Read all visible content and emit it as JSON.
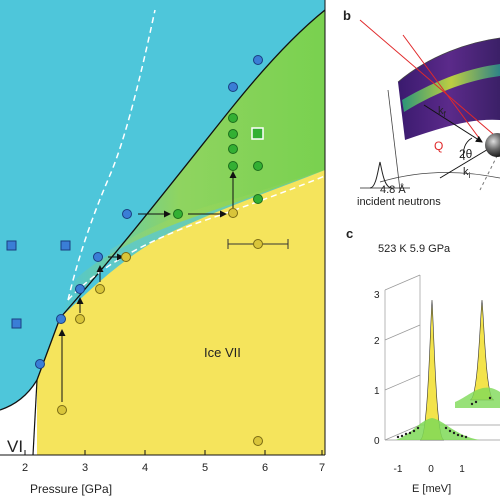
{
  "panel_a": {
    "xlabel": "Pressure [GPa]",
    "x_ticks": [
      "2",
      "3",
      "4",
      "5",
      "6",
      "7"
    ],
    "region_ice_vii": "Ice VII",
    "region_vi": "VI",
    "colors": {
      "liquid": "#4ec6da",
      "superionic": "#7ed957",
      "ice_vii": "#f5e45c",
      "ice_vi": "#ffffff"
    }
  },
  "panel_b": {
    "label": "b",
    "kf": "k",
    "kf_sub": "f",
    "ki": "k",
    "ki_sub": "i",
    "q": "Q",
    "two_theta": "2θ",
    "wavelength": "4.8 Å",
    "incident": "incident neutrons"
  },
  "panel_c": {
    "label": "c",
    "condition": "523 K 5.9 GPa",
    "xlabel": "E [meV]",
    "x_ticks": [
      "-1",
      "0",
      "1"
    ],
    "y_ticks": [
      "0",
      "1",
      "2",
      "3"
    ]
  }
}
